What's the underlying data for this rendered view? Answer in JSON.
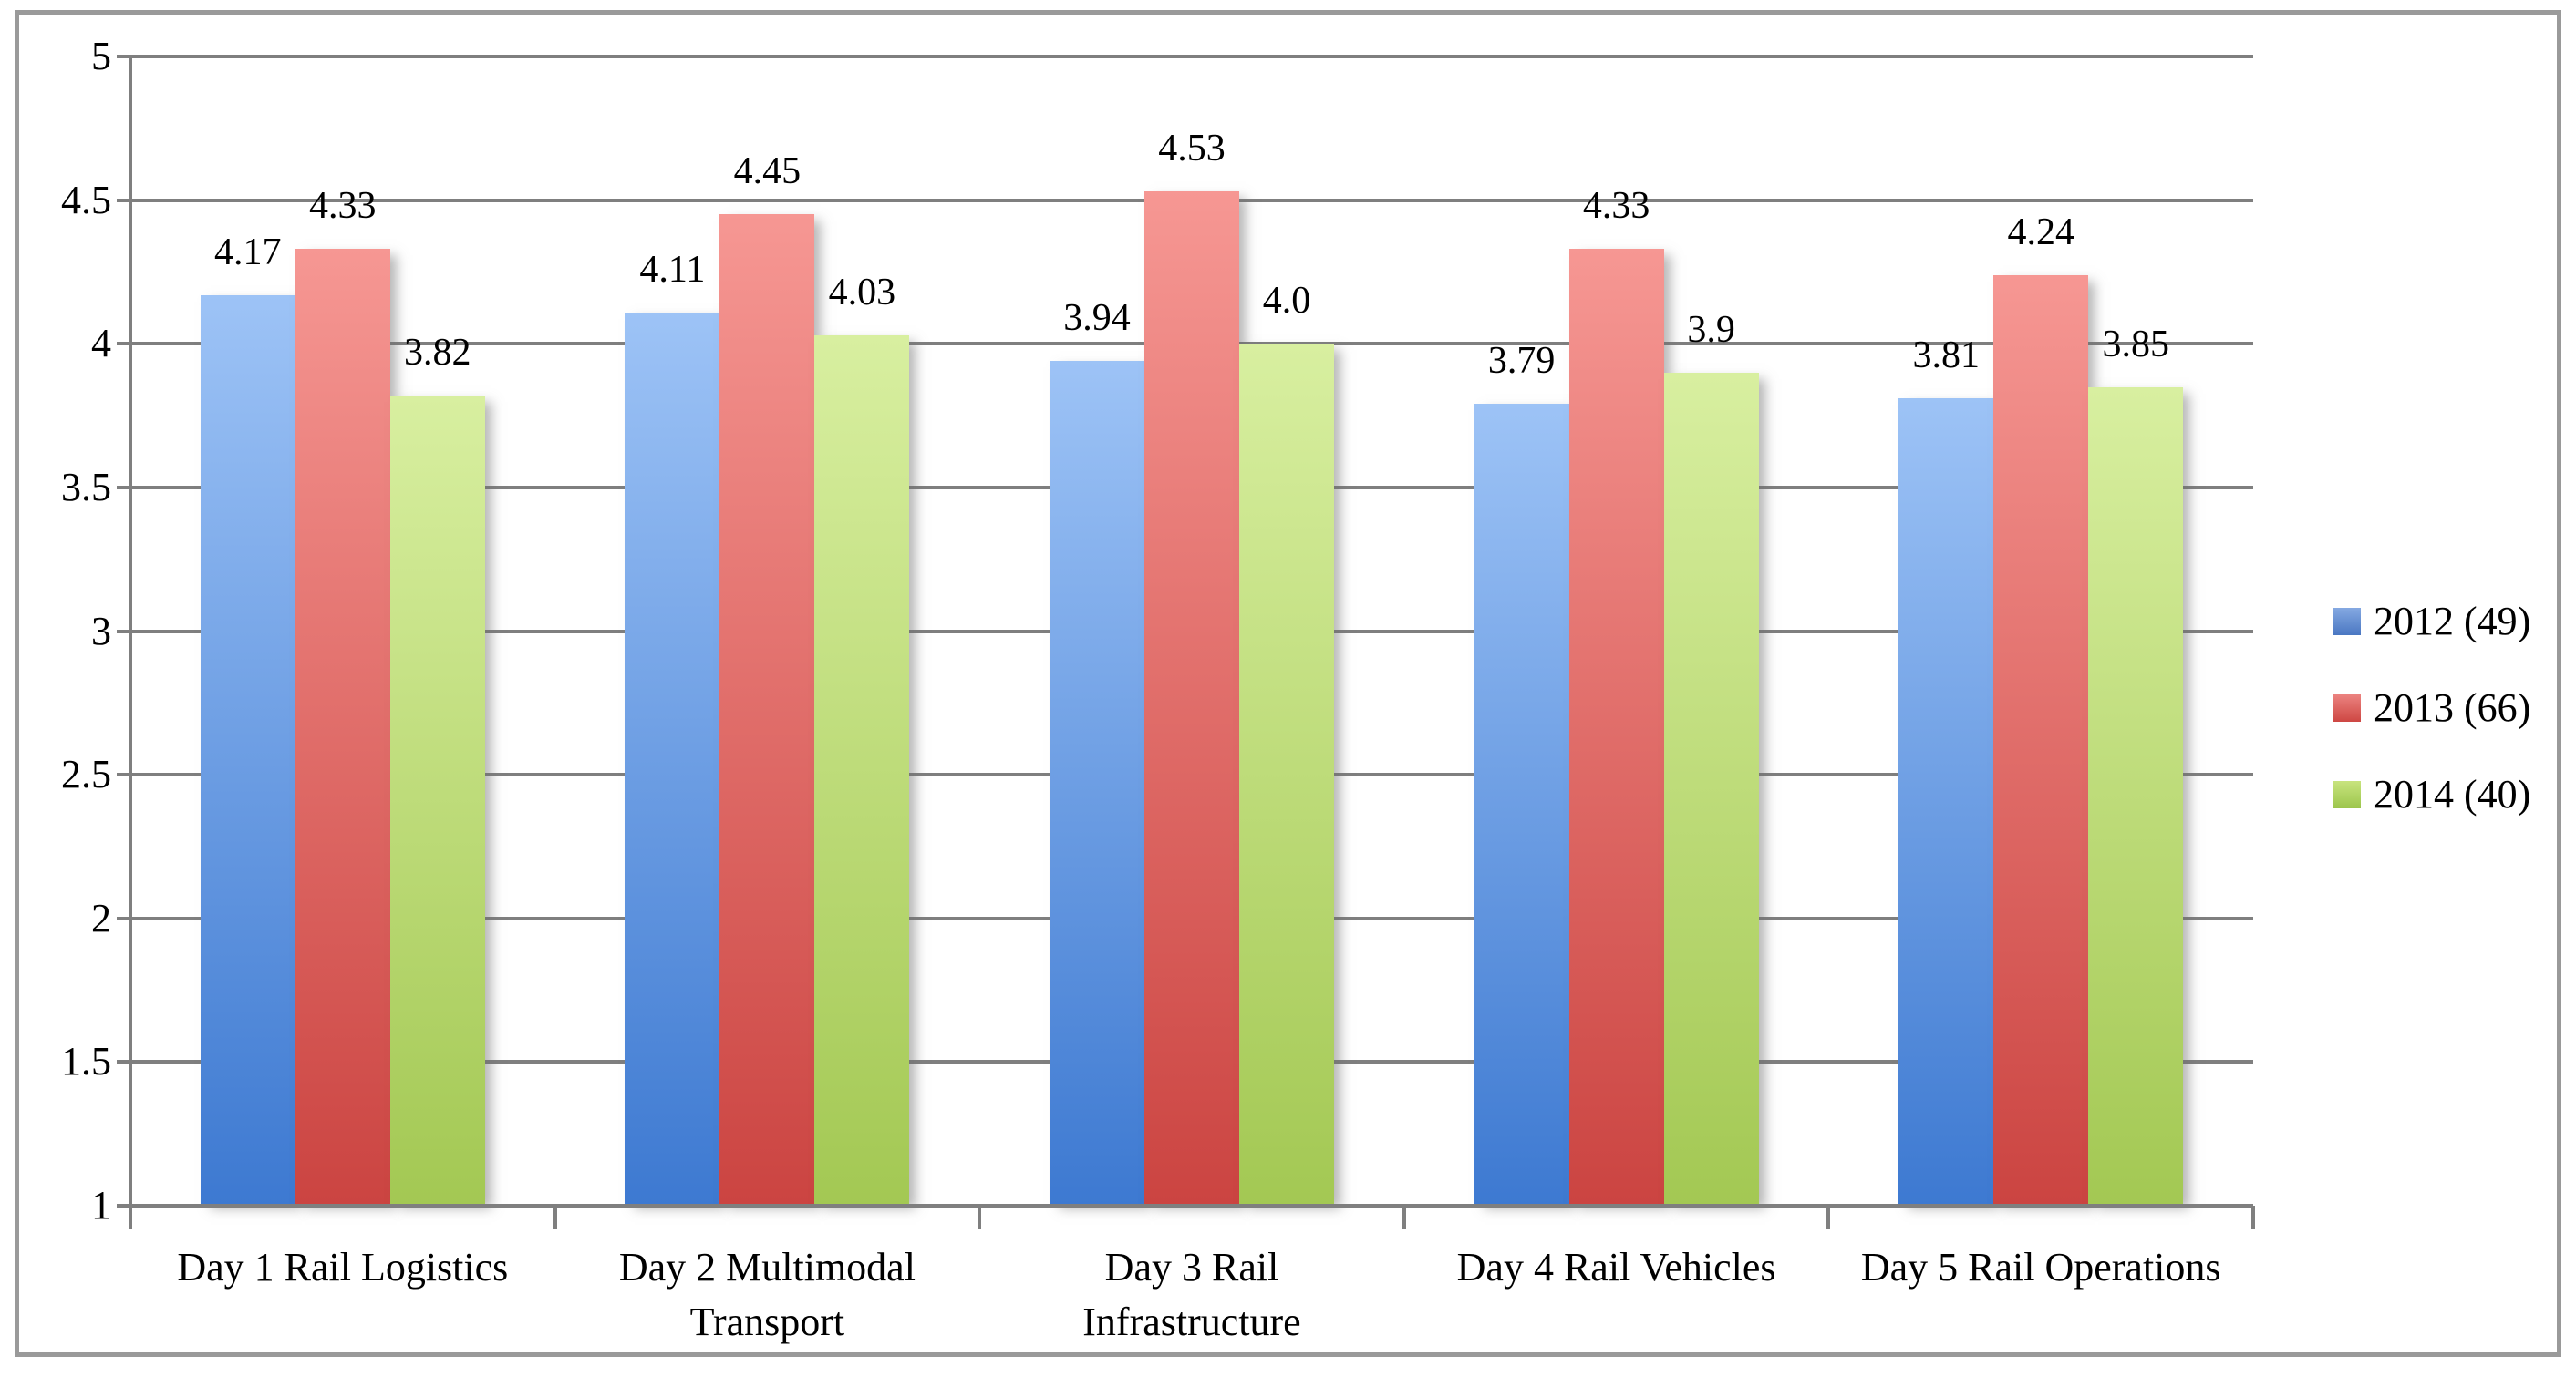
{
  "chart_data": {
    "type": "bar",
    "title": "",
    "categories": [
      "Day 1 Rail Logistics",
      "Day 2 Multimodal Transport",
      "Day 3 Rail Infrastructure",
      "Day 4 Rail Vehicles",
      "Day 5 Rail Operations"
    ],
    "series": [
      {
        "name": "2012 (49)",
        "values": [
          4.17,
          4.11,
          3.94,
          3.79,
          3.81
        ],
        "labels": [
          "4.17",
          "4.11",
          "3.94",
          "3.79",
          "3.81"
        ],
        "color_top": "#9dc3f6",
        "color_bottom": "#3d79d1",
        "legend_top": "#85a9e2",
        "legend_bottom": "#4a77c2"
      },
      {
        "name": "2013 (66)",
        "values": [
          4.33,
          4.45,
          4.53,
          4.33,
          4.24
        ],
        "labels": [
          "4.33",
          "4.45",
          "4.53",
          "4.33",
          "4.24"
        ],
        "color_top": "#f69793",
        "color_bottom": "#cb4441",
        "legend_top": "#ec8380",
        "legend_bottom": "#ce4743"
      },
      {
        "name": "2014 (40)",
        "values": [
          3.82,
          4.03,
          4.0,
          3.9,
          3.85
        ],
        "labels": [
          "3.82",
          "4.03",
          "4.0",
          "3.9",
          "3.85"
        ],
        "color_top": "#d8efa0",
        "color_bottom": "#a3c853",
        "legend_top": "#c8e47e",
        "legend_bottom": "#9cc54c"
      }
    ],
    "y_axis": {
      "min": 1,
      "max": 5,
      "step": 0.5,
      "tick_labels": [
        "1",
        "1.5",
        "2",
        "2.5",
        "3",
        "3.5",
        "4",
        "4.5",
        "5"
      ]
    },
    "grid": true,
    "legend_position": "right",
    "colors": {
      "gridline": "#7f7f7f",
      "axis": "#7f7f7f",
      "frame_border": "#9a9a9a",
      "text": "#000000",
      "background": "#ffffff"
    }
  }
}
